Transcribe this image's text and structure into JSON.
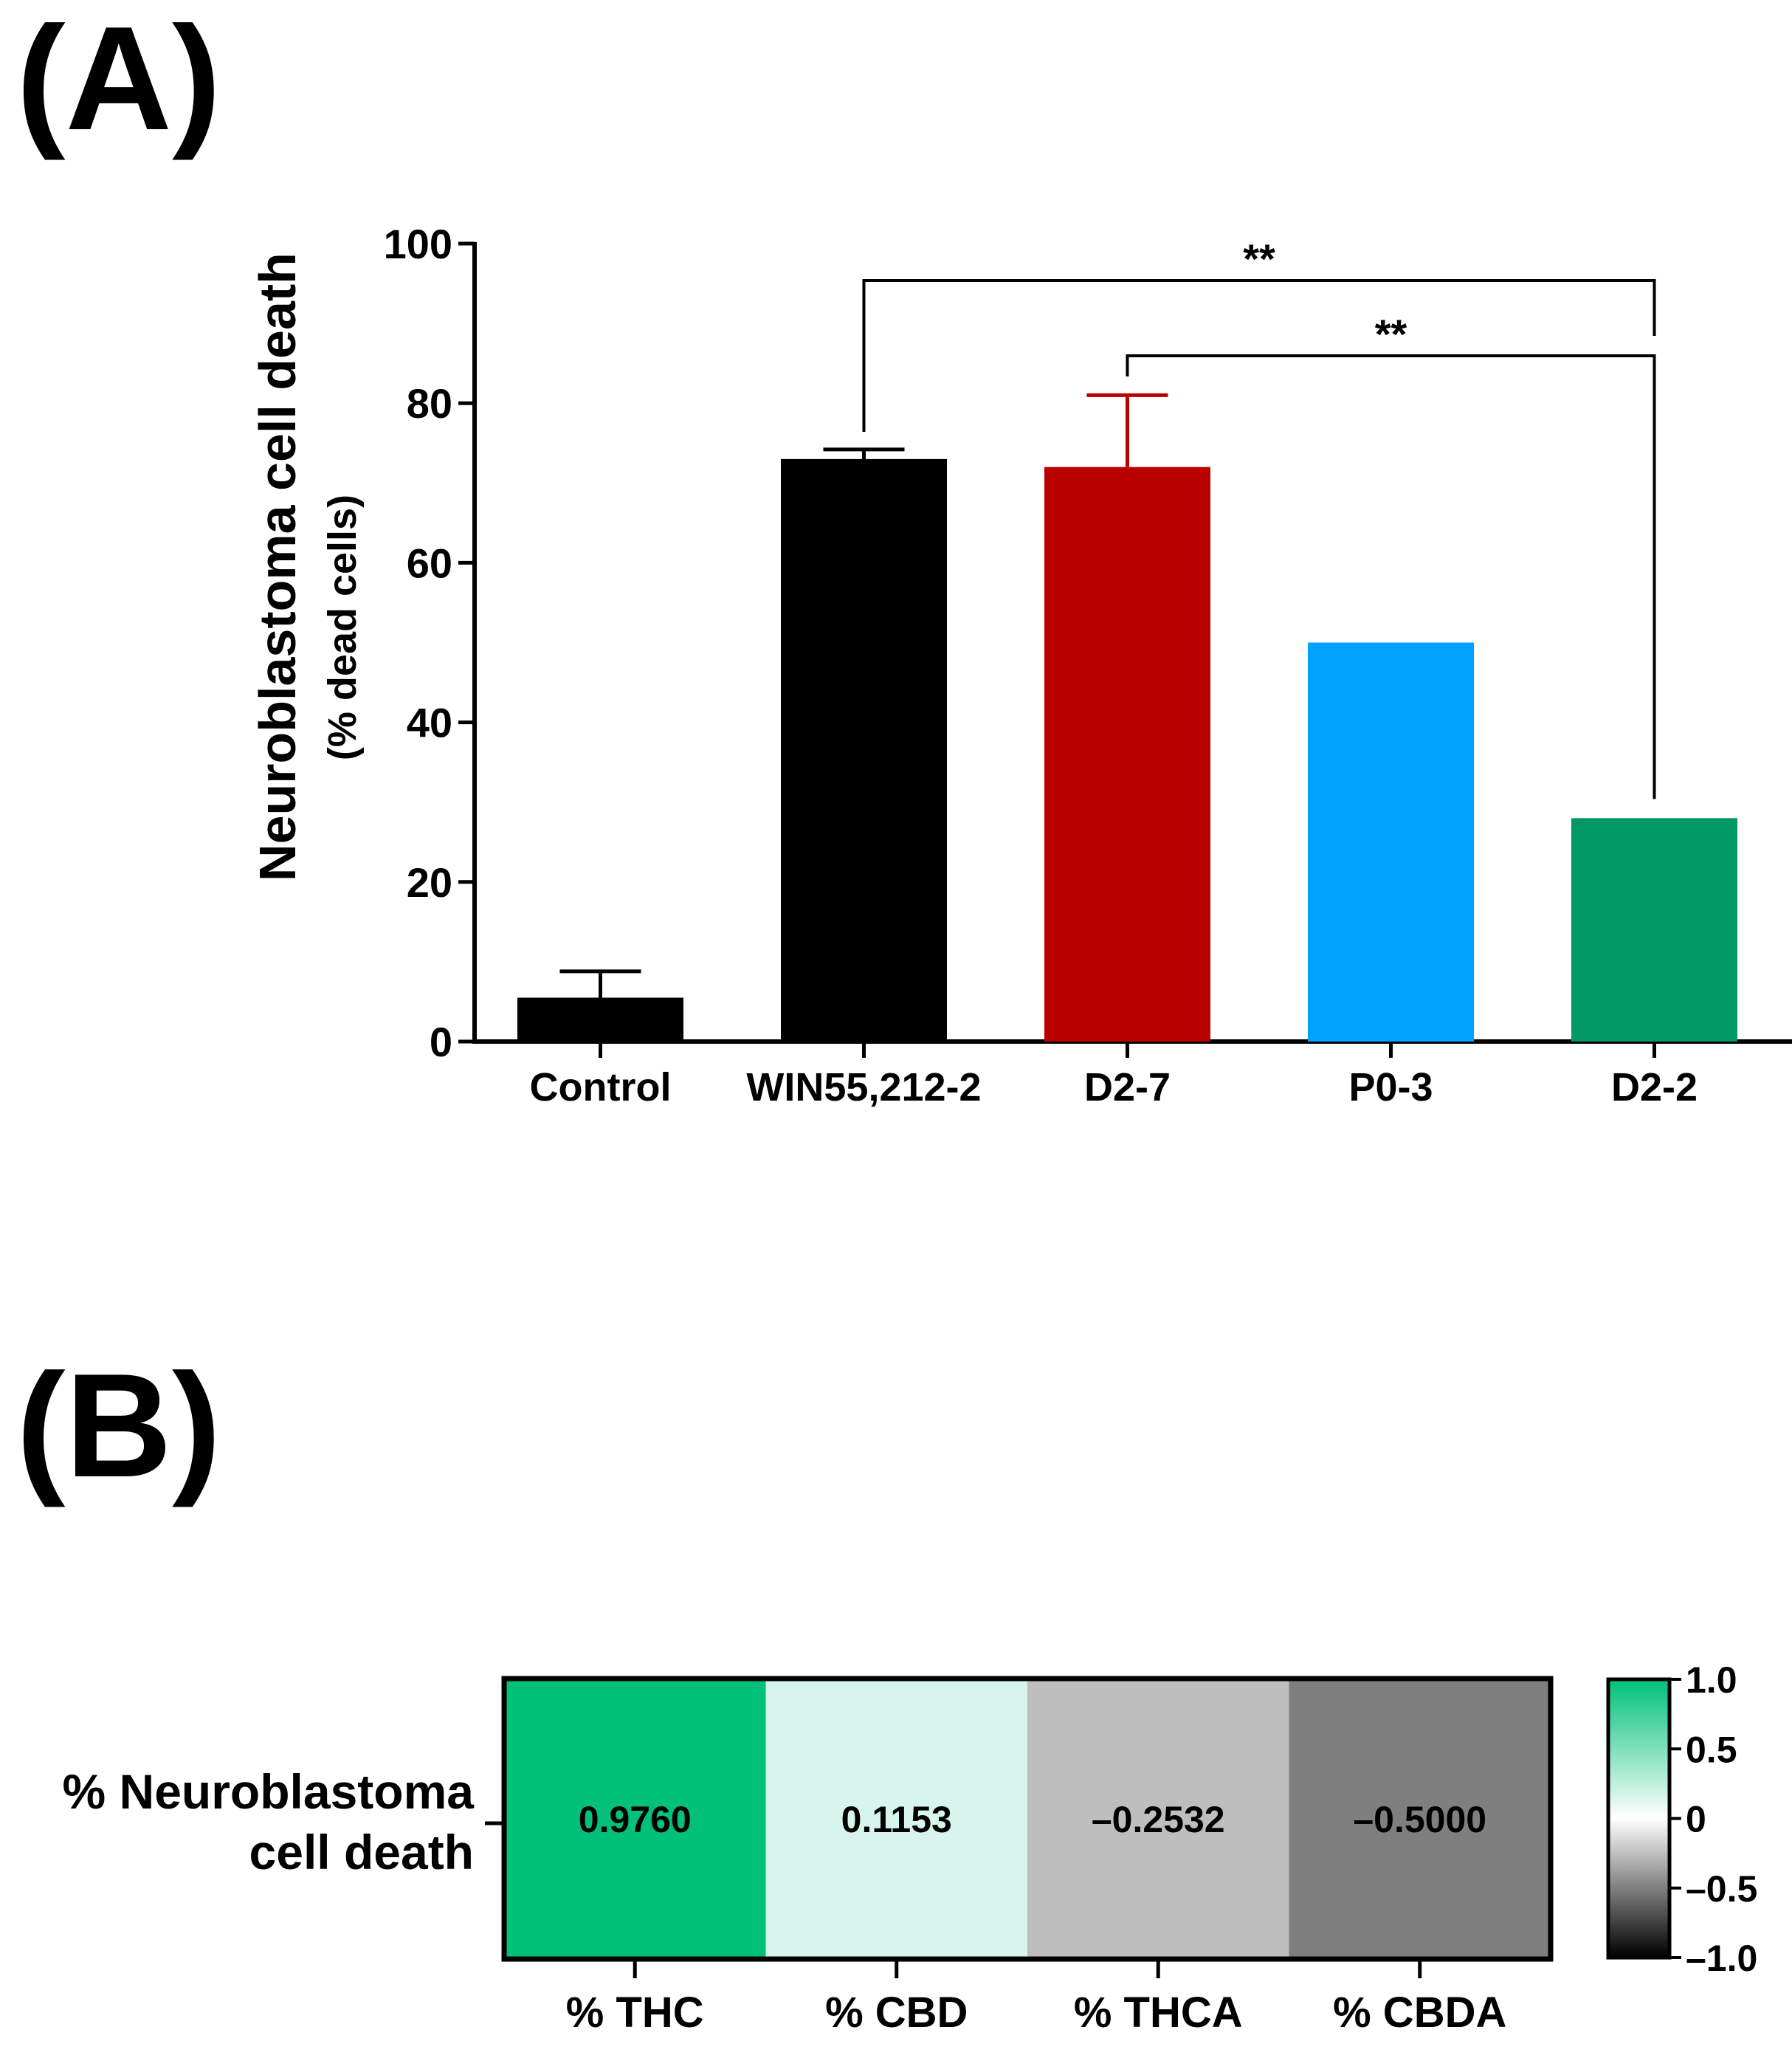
{
  "panel_labels": {
    "a": "(A)",
    "b": "(B)"
  },
  "chart_data": [
    {
      "type": "bar",
      "panel": "(A)",
      "ylabel": "Neuroblastoma cell death",
      "ylabel_sub": "(% dead cells)",
      "ylim": [
        0,
        100
      ],
      "yticks": [
        0,
        20,
        40,
        60,
        80,
        100
      ],
      "categories": [
        "Control",
        "WIN55,212-2",
        "D2-7",
        "P0-3",
        "D2-2"
      ],
      "values": [
        5.5,
        73,
        72,
        50,
        28
      ],
      "errors": [
        3.3,
        1.2,
        9,
        0,
        0
      ],
      "colors": [
        "#000000",
        "#000000",
        "#b80000",
        "#00a2ff",
        "#009966"
      ],
      "significance": [
        {
          "from": 1,
          "to": 4,
          "label": "**"
        },
        {
          "from": 2,
          "to": 4,
          "label": "**"
        }
      ]
    },
    {
      "type": "heatmap",
      "panel": "(B)",
      "row_label_lines": [
        "% Neuroblastoma",
        "cell death"
      ],
      "columns": [
        "% THC",
        "% CBD",
        "% THCA",
        "% CBDA"
      ],
      "values": [
        0.976,
        0.1153,
        -0.2532,
        -0.5
      ],
      "value_labels": [
        "0.9760",
        "0.1153",
        "–0.2532",
        "–0.5000"
      ],
      "cell_colors": [
        "#00c07a",
        "#d7f5ec",
        "#bebebe",
        "#7f7f7f"
      ],
      "colorbar": {
        "range": [
          -1,
          1
        ],
        "ticks": [
          1,
          0.5,
          0,
          -0.5,
          -1
        ],
        "tick_labels": [
          "1.0",
          "0.5",
          "0",
          "–0.5",
          "–1.0"
        ],
        "colors": {
          "high": "#00c07a",
          "mid": "#ffffff",
          "low": "#000000"
        }
      }
    }
  ]
}
